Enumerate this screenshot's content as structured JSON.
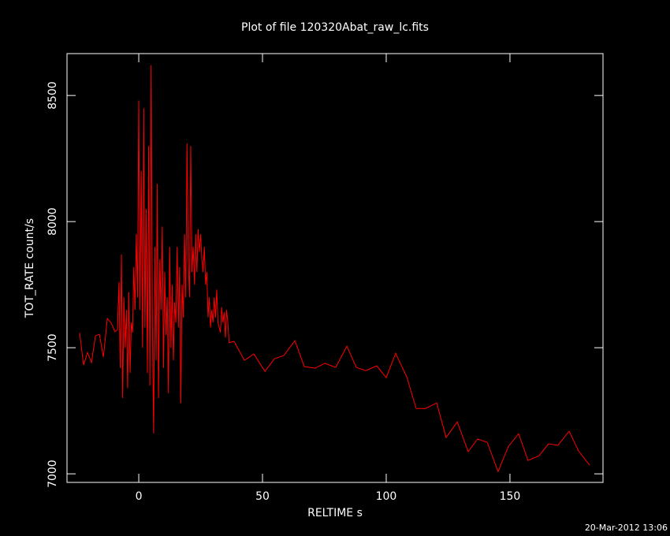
{
  "chart_data": {
    "type": "line",
    "title": "Plot of file 120320Abat_raw_lc.fits",
    "x_label": "RELTIME  s",
    "y_label": "TOT_RATE  count/s",
    "timestamp": "20-Mar-2012 13:06",
    "x": [
      -23.9,
      -22.3,
      -20.7,
      -19.1,
      -17.5,
      -15.9,
      -14.3,
      -12.7,
      -11.1,
      -9.6,
      -8.6,
      -8,
      -7.5,
      -7,
      -6.5,
      -6,
      -5.5,
      -5,
      -4.5,
      -4,
      -3.5,
      -3,
      -2.5,
      -2,
      -1.5,
      -1,
      -0.5,
      0,
      0.5,
      1,
      1.5,
      2,
      2.5,
      3,
      3.5,
      4,
      4.5,
      5,
      5.5,
      6,
      6.5,
      7,
      7.5,
      8,
      8.5,
      9,
      9.5,
      10,
      10.5,
      11,
      11.5,
      12,
      12.5,
      13,
      13.5,
      14,
      14.5,
      15,
      15.5,
      16,
      16.5,
      17,
      17.5,
      18,
      18.5,
      19,
      19.5,
      20,
      20.5,
      21,
      21.5,
      22,
      22.5,
      23,
      23.5,
      24,
      24.5,
      25,
      25.5,
      26,
      26.5,
      27,
      27.5,
      28,
      28.5,
      29,
      29.5,
      30,
      30.5,
      31,
      31.5,
      32,
      32.5,
      33,
      33.5,
      34,
      34.5,
      35,
      35.5,
      36,
      36.5,
      38.5,
      42.7,
      46.5,
      51.0,
      54.8,
      58.6,
      63.1,
      66.9,
      71.3,
      75.2,
      79.6,
      84.1,
      87.9,
      91.7,
      96.2,
      100.0,
      103.8,
      108.3,
      112.1,
      115.9,
      120.4,
      124.2,
      128.7,
      133.1,
      136.9,
      140.8,
      145.2,
      149.4,
      153.5,
      157.3,
      161.8,
      165.6,
      169.4,
      173.9,
      177.7,
      182.2
    ],
    "series": [
      {
        "name": "TOT_RATE",
        "color": "#ff0000",
        "values": [
          7559,
          7431,
          7481,
          7441,
          7547,
          7553,
          7463,
          7616,
          7597,
          7563,
          7572,
          7760,
          7420,
          7870,
          7300,
          7700,
          7500,
          7650,
          7340,
          7720,
          7400,
          7600,
          7560,
          7820,
          7650,
          7950,
          7700,
          8480,
          7650,
          8200,
          7500,
          8450,
          7580,
          8050,
          7400,
          8300,
          7350,
          8620,
          7600,
          7160,
          7900,
          7450,
          8150,
          7300,
          7850,
          7650,
          7980,
          7420,
          7800,
          7550,
          7700,
          7320,
          7900,
          7500,
          7750,
          7450,
          7680,
          7600,
          7900,
          7580,
          7820,
          7280,
          7750,
          7620,
          7950,
          7700,
          8310,
          7850,
          7700,
          8300,
          7800,
          7900,
          7750,
          7950,
          7800,
          7970,
          7880,
          7950,
          7850,
          7800,
          7900,
          7750,
          7800,
          7620,
          7700,
          7580,
          7650,
          7600,
          7700,
          7620,
          7730,
          7600,
          7580,
          7560,
          7660,
          7600,
          7640,
          7540,
          7650,
          7600,
          7520,
          7525,
          7450,
          7475,
          7406,
          7456,
          7469,
          7528,
          7425,
          7419,
          7438,
          7422,
          7506,
          7422,
          7409,
          7428,
          7381,
          7478,
          7384,
          7259,
          7259,
          7281,
          7144,
          7206,
          7088,
          7138,
          7125,
          7009,
          7109,
          7159,
          7053,
          7072,
          7119,
          7113,
          7169,
          7091,
          7034
        ]
      }
    ],
    "xlim": [
      -29,
      187.6
    ],
    "ylim": [
      6966,
      8666
    ],
    "xticks": [
      0,
      50,
      100,
      150
    ],
    "yticks": [
      7000,
      7500,
      8000,
      8500
    ]
  }
}
